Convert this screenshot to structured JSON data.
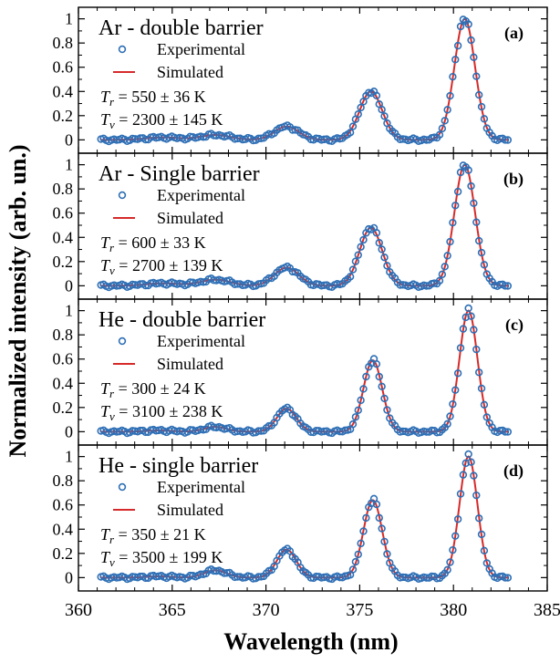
{
  "figure": {
    "ylabel": "Normalized intensity (arb. un.)",
    "xlabel": "Wavelength (nm)"
  },
  "colors": {
    "experimental": "#2e6fb5",
    "simulated": "#d62a2a",
    "axis": "#000000"
  },
  "chart_data": [
    {
      "type": "line",
      "panel": "(a)",
      "title": "Ar - double barrier",
      "annotations": [
        "T_r = 550 ± 36 K",
        "T_v = 2300 ± 145 K"
      ],
      "legend": [
        "Experimental",
        "Simulated"
      ],
      "xlim": [
        360,
        385
      ],
      "ylim": [
        -0.05,
        1.05
      ],
      "yticks": [
        "0",
        "0.2",
        "0.4",
        "0.6",
        "0.8",
        "1"
      ],
      "peaks": [
        {
          "center": 380.6,
          "sigma": 0.55,
          "amp": 1.0
        },
        {
          "center": 375.6,
          "sigma": 0.6,
          "amp": 0.4
        },
        {
          "center": 371.1,
          "sigma": 0.65,
          "amp": 0.11
        },
        {
          "center": 367.3,
          "sigma": 0.8,
          "amp": 0.04
        },
        {
          "center": 364.5,
          "sigma": 0.9,
          "amp": 0.02
        }
      ]
    },
    {
      "type": "line",
      "panel": "(b)",
      "title": "Ar - Single barrier",
      "annotations": [
        "T_r = 600 ± 33 K",
        "T_v = 2700 ± 139 K"
      ],
      "legend": [
        "Experimental",
        "Simulated"
      ],
      "xlim": [
        360,
        385
      ],
      "ylim": [
        -0.05,
        1.05
      ],
      "yticks": [
        "0",
        "0.2",
        "0.4",
        "0.6",
        "0.8",
        "1"
      ],
      "peaks": [
        {
          "center": 380.6,
          "sigma": 0.55,
          "amp": 1.0
        },
        {
          "center": 375.6,
          "sigma": 0.6,
          "amp": 0.48
        },
        {
          "center": 371.1,
          "sigma": 0.65,
          "amp": 0.15
        },
        {
          "center": 367.3,
          "sigma": 0.8,
          "amp": 0.05
        },
        {
          "center": 364.5,
          "sigma": 0.9,
          "amp": 0.02
        }
      ]
    },
    {
      "type": "line",
      "panel": "(c)",
      "title": "He - double barrier",
      "annotations": [
        "T_r = 300 ± 24 K",
        "T_v = 3100 ± 238 K"
      ],
      "legend": [
        "Experimental",
        "Simulated"
      ],
      "xlim": [
        360,
        385
      ],
      "ylim": [
        -0.05,
        1.05
      ],
      "yticks": [
        "0",
        "0.2",
        "0.4",
        "0.6",
        "0.8",
        "1"
      ],
      "peaks": [
        {
          "center": 380.8,
          "sigma": 0.48,
          "amp": 1.0
        },
        {
          "center": 375.7,
          "sigma": 0.5,
          "amp": 0.59
        },
        {
          "center": 371.1,
          "sigma": 0.52,
          "amp": 0.19
        },
        {
          "center": 367.3,
          "sigma": 0.6,
          "amp": 0.04
        },
        {
          "center": 364.3,
          "sigma": 0.7,
          "amp": 0.01
        }
      ]
    },
    {
      "type": "line",
      "panel": "(d)",
      "title": "He - single barrier",
      "annotations": [
        "T_r = 350 ± 21 K",
        "T_v = 3500 ± 199 K"
      ],
      "legend": [
        "Experimental",
        "Simulated"
      ],
      "xlim": [
        360,
        385
      ],
      "ylim": [
        -0.05,
        1.05
      ],
      "yticks": [
        "0",
        "0.2",
        "0.4",
        "0.6",
        "0.8",
        "1"
      ],
      "peaks": [
        {
          "center": 380.8,
          "sigma": 0.48,
          "amp": 1.0
        },
        {
          "center": 375.7,
          "sigma": 0.5,
          "amp": 0.64
        },
        {
          "center": 371.1,
          "sigma": 0.52,
          "amp": 0.23
        },
        {
          "center": 367.3,
          "sigma": 0.6,
          "amp": 0.06
        },
        {
          "center": 364.3,
          "sigma": 0.7,
          "amp": 0.01
        }
      ]
    }
  ],
  "xaxis": {
    "ticks": [
      360,
      365,
      370,
      375,
      380,
      385
    ],
    "ticklabels": [
      "360",
      "365",
      "370",
      "375",
      "380",
      "385"
    ]
  }
}
